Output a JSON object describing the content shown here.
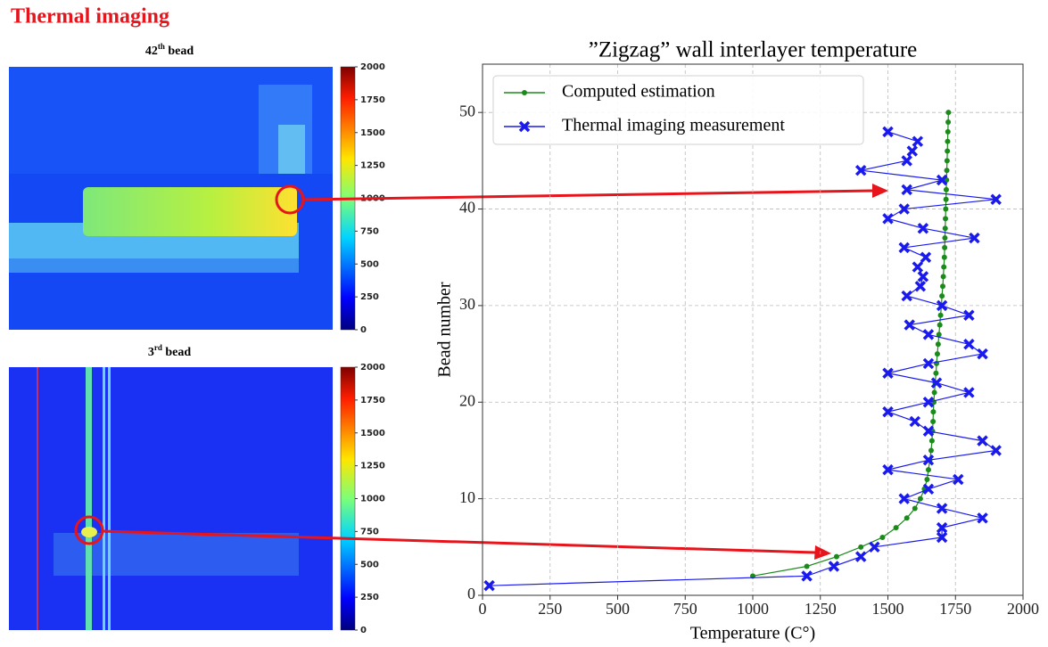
{
  "header": {
    "title": "Thermal imaging"
  },
  "images": [
    {
      "number": "42",
      "suffix": "th",
      "word": "bead"
    },
    {
      "number": "3",
      "suffix": "rd",
      "word": "bead"
    }
  ],
  "colorbar": {
    "lim": [
      0,
      2000
    ],
    "ticks": [
      0,
      250,
      500,
      750,
      1000,
      1250,
      1500,
      1750,
      2000
    ]
  },
  "chart_data": {
    "type": "line",
    "title": "”Zigzag” wall interlayer temperature",
    "x_label": "Temperature (C°)",
    "y_label": "Bead number",
    "xlim": [
      0,
      2000
    ],
    "ylim": [
      0,
      55
    ],
    "xticks": [
      0,
      250,
      500,
      750,
      1000,
      1250,
      1500,
      1750,
      2000
    ],
    "yticks": [
      0,
      10,
      20,
      30,
      40,
      50
    ],
    "grid": true,
    "legend": "upper left",
    "series": [
      {
        "name": "Computed estimation",
        "color": "#1a8a1a",
        "marker": "circle",
        "x": [
          1000,
          1200,
          1310,
          1400,
          1480,
          1530,
          1570,
          1600,
          1620,
          1635,
          1645,
          1650,
          1655,
          1660,
          1663,
          1665,
          1667,
          1668,
          1670,
          1672,
          1675,
          1678,
          1680,
          1683,
          1686,
          1689,
          1692,
          1695,
          1698,
          1700,
          1703,
          1705,
          1707,
          1709,
          1710,
          1711,
          1712,
          1713,
          1714,
          1715,
          1716,
          1717,
          1718,
          1719,
          1720,
          1721,
          1722,
          1723,
          1724
        ],
        "values": [
          2,
          3,
          4,
          5,
          6,
          7,
          8,
          9,
          10,
          11,
          12,
          13,
          14,
          15,
          16,
          17,
          18,
          19,
          20,
          21,
          22,
          23,
          24,
          25,
          26,
          27,
          28,
          29,
          30,
          31,
          32,
          33,
          34,
          35,
          36,
          37,
          38,
          39,
          40,
          41,
          42,
          43,
          44,
          45,
          46,
          47,
          48,
          49,
          50
        ]
      },
      {
        "name": "Thermal imaging measurement",
        "color": "#1a1aee",
        "marker": "x",
        "x": [
          25,
          1200,
          1300,
          1400,
          1450,
          1700,
          1700,
          1850,
          1700,
          1560,
          1650,
          1760,
          1500,
          1650,
          1900,
          1850,
          1650,
          1600,
          1500,
          1650,
          1800,
          1680,
          1500,
          1650,
          1850,
          1800,
          1650,
          1580,
          1800,
          1700,
          1570,
          1620,
          1630,
          1610,
          1640,
          1560,
          1820,
          1630,
          1500,
          1560,
          1900,
          1570,
          1700,
          1400,
          1570,
          1590,
          1610,
          1500
        ],
        "values": [
          1,
          2,
          3,
          4,
          5,
          6,
          7,
          8,
          9,
          10,
          11,
          12,
          13,
          14,
          15,
          16,
          17,
          18,
          19,
          20,
          21,
          22,
          23,
          24,
          25,
          26,
          27,
          28,
          29,
          30,
          31,
          32,
          33,
          34,
          35,
          36,
          37,
          38,
          39,
          40,
          41,
          42,
          43,
          44,
          45,
          46,
          47,
          48
        ]
      }
    ]
  }
}
